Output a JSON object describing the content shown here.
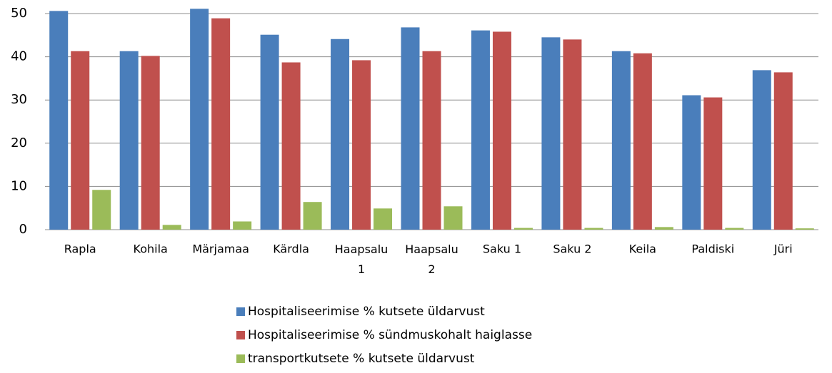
{
  "chart_data": {
    "type": "bar",
    "categories": [
      "Rapla",
      "Kohila",
      "Märjamaa",
      "Kärdla",
      "Haapsalu 1",
      "Haapsalu 2",
      "Saku 1",
      "Saku 2",
      "Keila",
      "Paldiski",
      "Jüri"
    ],
    "series": [
      {
        "name": "Hospitaliseerimise % kutsete üldarvust",
        "color": "#4a7ebb",
        "values": [
          50.6,
          41.3,
          51.1,
          45.1,
          44.1,
          46.8,
          46.1,
          44.5,
          41.3,
          31.1,
          36.9
        ]
      },
      {
        "name": "Hospitaliseerimise % sündmuskohalt haiglasse",
        "color": "#c0504d",
        "values": [
          41.3,
          40.2,
          48.9,
          38.7,
          39.2,
          41.3,
          45.8,
          44.0,
          40.8,
          30.6,
          36.4
        ]
      },
      {
        "name": "transportkutsete % kutsete üldarvust",
        "color": "#9bbb59",
        "values": [
          9.2,
          1.1,
          1.9,
          6.4,
          4.9,
          5.4,
          0.4,
          0.4,
          0.6,
          0.4,
          0.3
        ]
      }
    ],
    "ylim": [
      0,
      50
    ],
    "yticks": [
      0,
      10,
      20,
      30,
      40,
      50
    ],
    "grid": true,
    "legend": "bottom"
  }
}
